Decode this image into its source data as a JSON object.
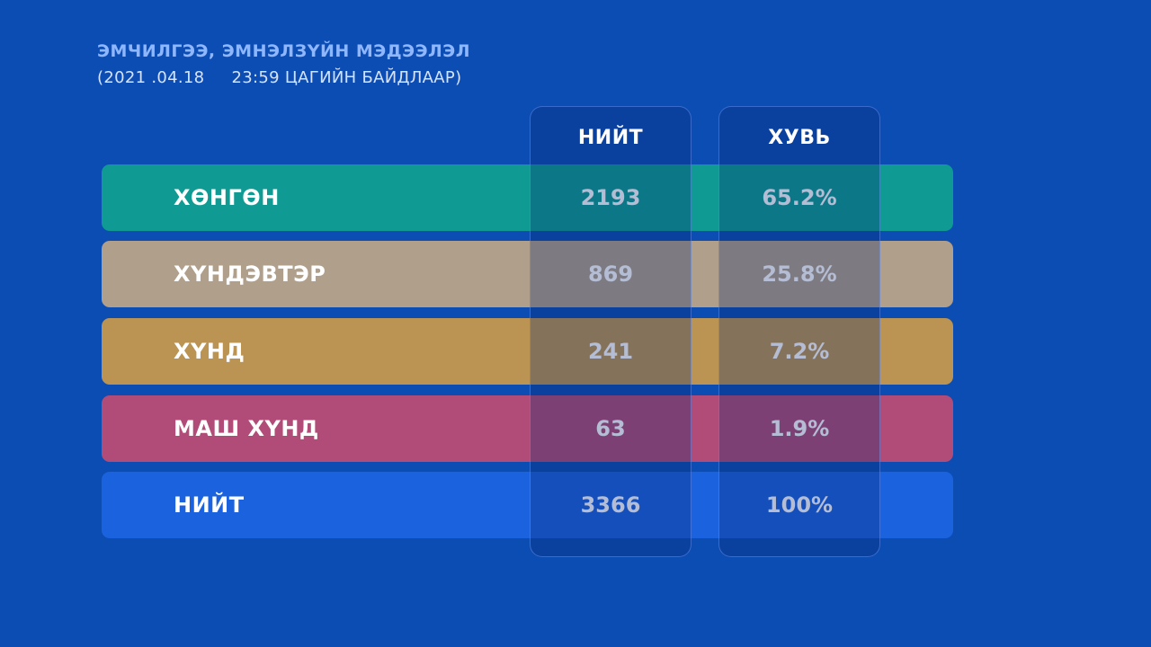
{
  "header": {
    "title": "ЭМЧИЛГЭЭ, ЭМНЭЛЗҮЙН МЭДЭЭЛЭЛ",
    "subtitle": "(2021 .04.18     23:59 ЦАГИЙН БАЙДЛААР)"
  },
  "columns": {
    "total": "НИЙТ",
    "percent": "ХУВЬ"
  },
  "rows": [
    {
      "label": "ХӨНГӨН",
      "total": "2193",
      "percent": "65.2%",
      "color": "#0f9b93"
    },
    {
      "label": "ХҮНДЭВТЭР",
      "total": "869",
      "percent": "25.8%",
      "color": "#b09f8b"
    },
    {
      "label": "ХҮНД",
      "total": "241",
      "percent": "7.2%",
      "color": "#bb9454"
    },
    {
      "label": "МАШ ХҮНД",
      "total": "63",
      "percent": "1.9%",
      "color": "#b14c78"
    },
    {
      "label": "НИЙТ",
      "total": "3366",
      "percent": "100%",
      "color": "#1b62de"
    }
  ],
  "colors": {
    "background": "#0c4db3",
    "title": "#8fb7ff"
  }
}
